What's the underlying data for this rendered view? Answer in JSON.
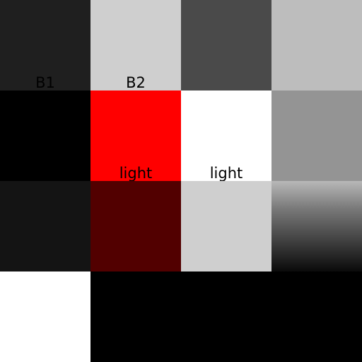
{
  "cells": {
    "r0c0": {
      "label": "B1"
    },
    "r0c1": {
      "label": "B2"
    },
    "r1c1": {
      "label": "light"
    },
    "r1c2": {
      "label": "light"
    }
  },
  "colors": {
    "r0c0": "#1f1f1f",
    "r0c1": "#cfcfcf",
    "r0c2": "#4a4a4a",
    "r0c3": "#bdbdbd",
    "r1c0": "#000000",
    "r1c1": "#ff0000",
    "r1c2": "#ffffff",
    "r1c3": "#949494",
    "r2c0": "#141414",
    "r2c1": "#520000",
    "r2c2": "#cfcfcf",
    "r2c3": "gradient-gray-to-black",
    "r3c0": "#ffffff",
    "r3c1": "#000000",
    "r3c2": "#000000",
    "r3c3": "#000000"
  }
}
